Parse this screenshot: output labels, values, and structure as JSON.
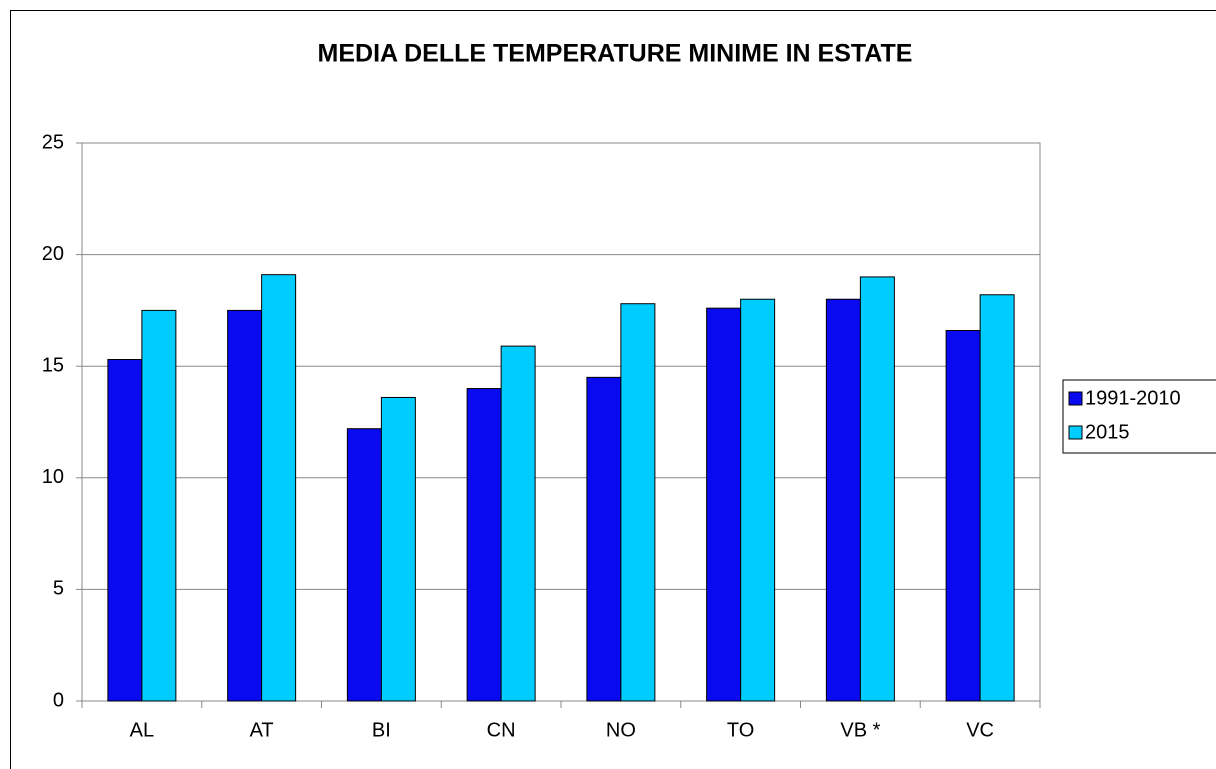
{
  "chart_data": {
    "type": "bar",
    "title": "MEDIA DELLE TEMPERATURE MINIME IN ESTATE",
    "categories": [
      "AL",
      "AT",
      "BI",
      "CN",
      "NO",
      "TO",
      "VB *",
      "VC"
    ],
    "series": [
      {
        "name": "1991-2010",
        "color": "#0a0af0",
        "values": [
          15.3,
          17.5,
          12.2,
          14.0,
          14.5,
          17.6,
          18.0,
          16.6
        ]
      },
      {
        "name": "2015",
        "color": "#00ccff",
        "values": [
          17.5,
          19.1,
          13.6,
          15.9,
          17.8,
          18.0,
          19.0,
          18.2
        ]
      }
    ],
    "ylim": [
      0,
      25
    ],
    "yticks": [
      0,
      5,
      10,
      15,
      20,
      25
    ],
    "grid": true,
    "legend": "right"
  }
}
